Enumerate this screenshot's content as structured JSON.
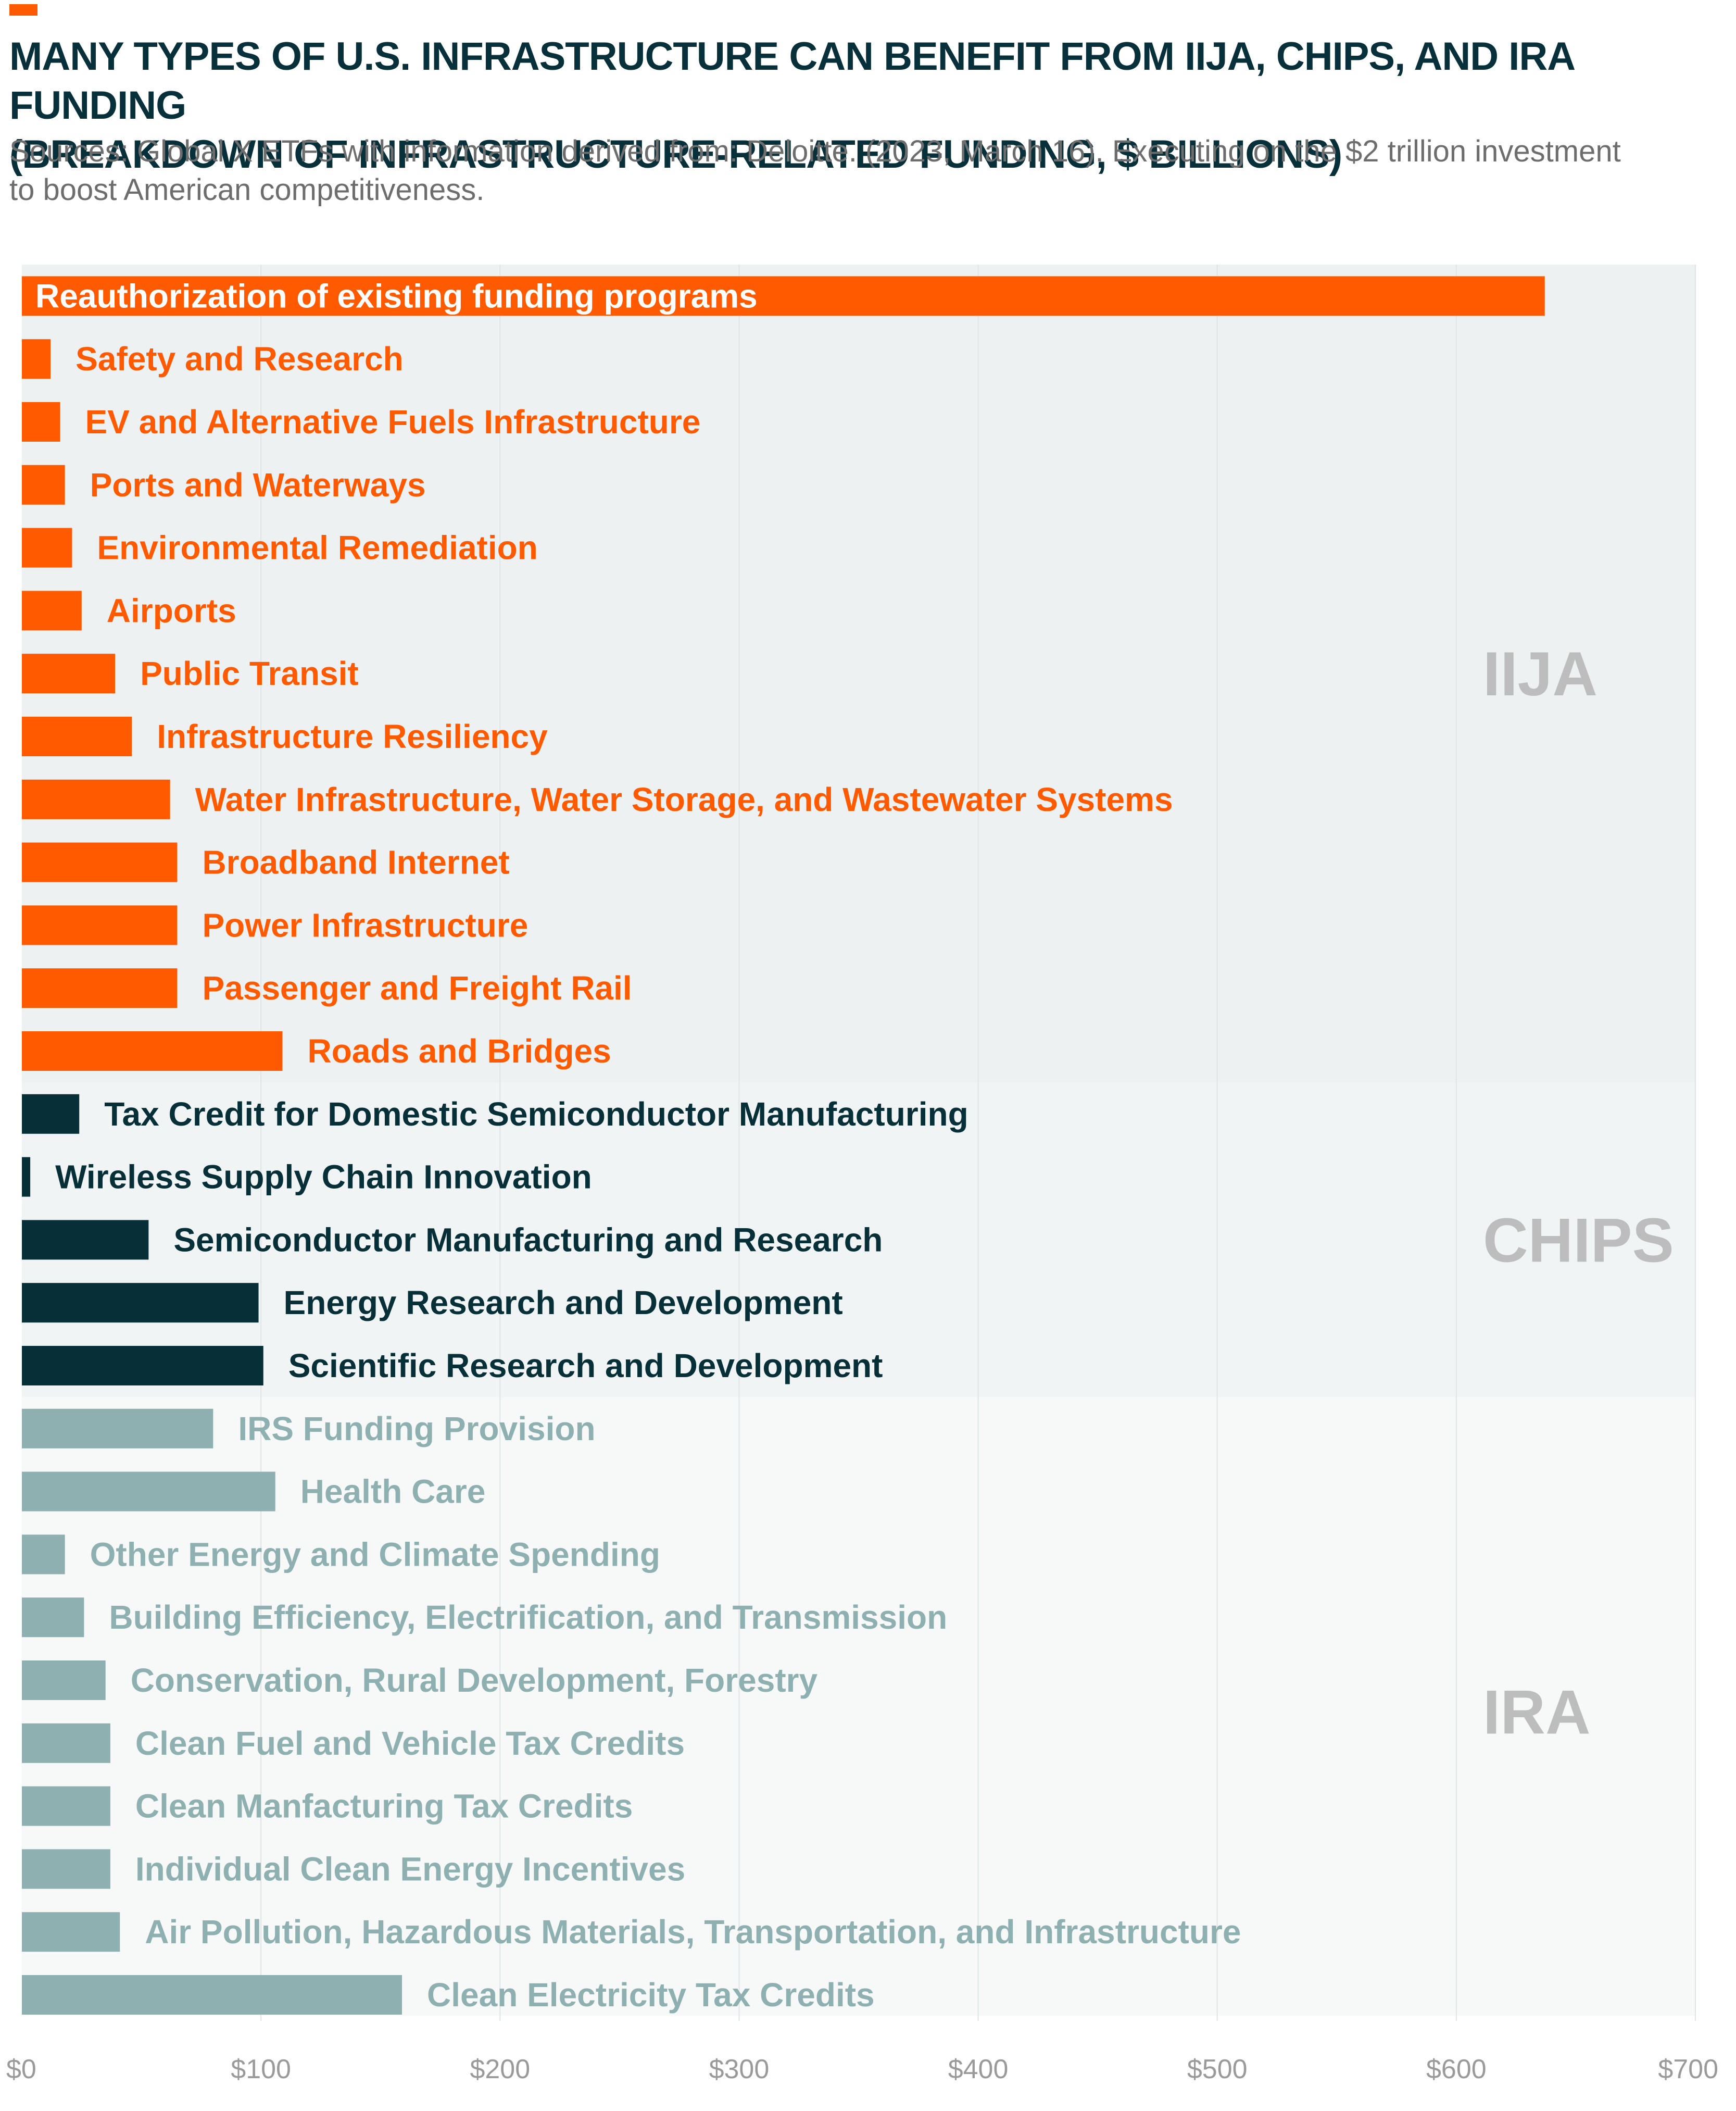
{
  "title_line1": "MANY TYPES OF U.S. INFRASTRUCTURE CAN BENEFIT FROM IIJA, CHIPS, AND IRA FUNDING",
  "title_line2": "(BREAKDOWN OF INFRASTRUCTURE-RELATED FUNDING, $ BILLIONS)",
  "source_line1": "Sources: Global X ETFs with information derived from: Deloitte. (2023, March 16). Executing on the $2 trillion investment",
  "source_line2": "to boost American competitiveness.",
  "colors": {
    "accent": "#ff5a00",
    "iija_bar": "#ff5a00",
    "chips_bar": "#062f38",
    "ira_bar": "#8fb0b0",
    "iija_background": "#edf1f1",
    "chips_background": "#f1f4f4",
    "ira_background": "#f7f9f9",
    "group_label": "#bdbdbd",
    "axis_text": "#9a9a9a"
  },
  "chart_data": {
    "type": "bar",
    "orientation": "horizontal",
    "xlim": [
      0,
      700
    ],
    "x_ticks": [
      "$0",
      "$100",
      "$200",
      "$300",
      "$400",
      "$500",
      "$600",
      "$700"
    ],
    "grid": true,
    "groups": [
      {
        "name": "IIJA",
        "color": "#ff5a00",
        "background": "#edf1f1",
        "categories": [
          "Reauthorization of existing funding programs",
          "Safety and Research",
          "EV and Alternative Fuels Infrastructure",
          "Ports and Waterways",
          "Environmental Remediation",
          "Airports",
          "Public Transit",
          "Infrastructure Resiliency",
          "Water Infrastructure, Water Storage, and Wastewater Systems",
          "Broadband Internet",
          "Power Infrastructure",
          "Passenger and Freight Rail",
          "Roads and Bridges"
        ],
        "values": [
          637,
          12,
          16,
          18,
          21,
          25,
          39,
          46,
          62,
          65,
          65,
          65,
          109
        ]
      },
      {
        "name": "CHIPS",
        "color": "#062f38",
        "background": "#f1f4f4",
        "categories": [
          "Tax Credit for Domestic Semiconductor Manufacturing",
          "Wireless Supply Chain Innovation",
          "Semiconductor Manufacturing and Research",
          "Energy Research and Development",
          "Scientific Research and Development"
        ],
        "values": [
          24,
          3.5,
          53,
          99,
          101
        ]
      },
      {
        "name": "IRA",
        "color": "#8fb0b0",
        "background": "#f7f9f9",
        "categories": [
          "IRS Funding Provision",
          "Health Care",
          "Other Energy and Climate Spending",
          "Building Efficiency, Electrification, and Transmission",
          "Conservation, Rural Development, Forestry",
          "Clean Fuel and Vehicle Tax Credits",
          "Clean Manfacturing Tax Credits",
          "Individual Clean Energy Incentives",
          "Air Pollution, Hazardous Materials, Transportation, and Infrastructure",
          "Clean Electricity Tax Credits"
        ],
        "values": [
          80,
          106,
          18,
          26,
          35,
          37,
          37,
          37,
          41,
          159
        ]
      }
    ]
  }
}
